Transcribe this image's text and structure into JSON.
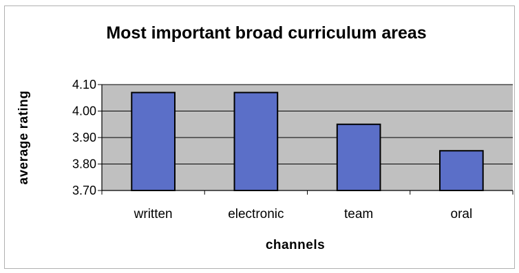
{
  "chart_data": {
    "type": "bar",
    "title": "Most important broad curriculum areas",
    "xlabel": "channels",
    "ylabel": "average rating",
    "categories": [
      "written",
      "electronic",
      "team",
      "oral"
    ],
    "values": [
      4.07,
      4.07,
      3.95,
      3.85
    ],
    "ylim": [
      3.7,
      4.1
    ],
    "yticks": [
      "3.70",
      "3.80",
      "3.90",
      "4.00",
      "4.10"
    ],
    "grid": true,
    "legend": "none",
    "colors": {
      "bar_fill": "#5b6fc8",
      "bar_stroke": "#000000",
      "plot_bg": "#c0c0c0",
      "grid": "#000000"
    }
  }
}
